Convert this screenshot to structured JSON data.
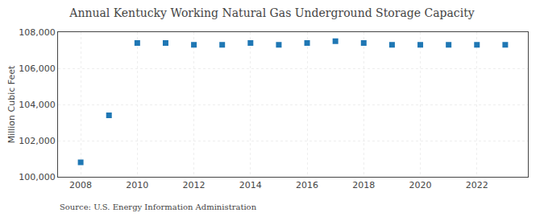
{
  "chart_data": {
    "type": "scatter",
    "title": "Annual Kentucky Working Natural Gas Underground Storage Capacity",
    "ylabel": "Million Cubic Feet",
    "annotations": [
      "Source: U.S. Energy Information Administration"
    ],
    "x": [
      2008,
      2009,
      2010,
      2011,
      2012,
      2013,
      2014,
      2015,
      2016,
      2017,
      2018,
      2019,
      2020,
      2021,
      2022,
      2023
    ],
    "values": [
      100800,
      103400,
      107400,
      107400,
      107300,
      107300,
      107400,
      107300,
      107400,
      107500,
      107400,
      107300,
      107300,
      107300,
      107300,
      107300
    ],
    "marker": "square",
    "xlim": [
      2007.2,
      2023.8
    ],
    "xticks": [
      2008,
      2010,
      2012,
      2014,
      2016,
      2018,
      2020,
      2022
    ],
    "ylim": [
      100000,
      108000
    ],
    "yticks": [
      {
        "value": 100000,
        "label": "100,000"
      },
      {
        "value": 102000,
        "label": "102,000"
      },
      {
        "value": 104000,
        "label": "104,000"
      },
      {
        "value": 106000,
        "label": "106,000"
      },
      {
        "value": 108000,
        "label": "108,000"
      }
    ],
    "grid": true
  }
}
